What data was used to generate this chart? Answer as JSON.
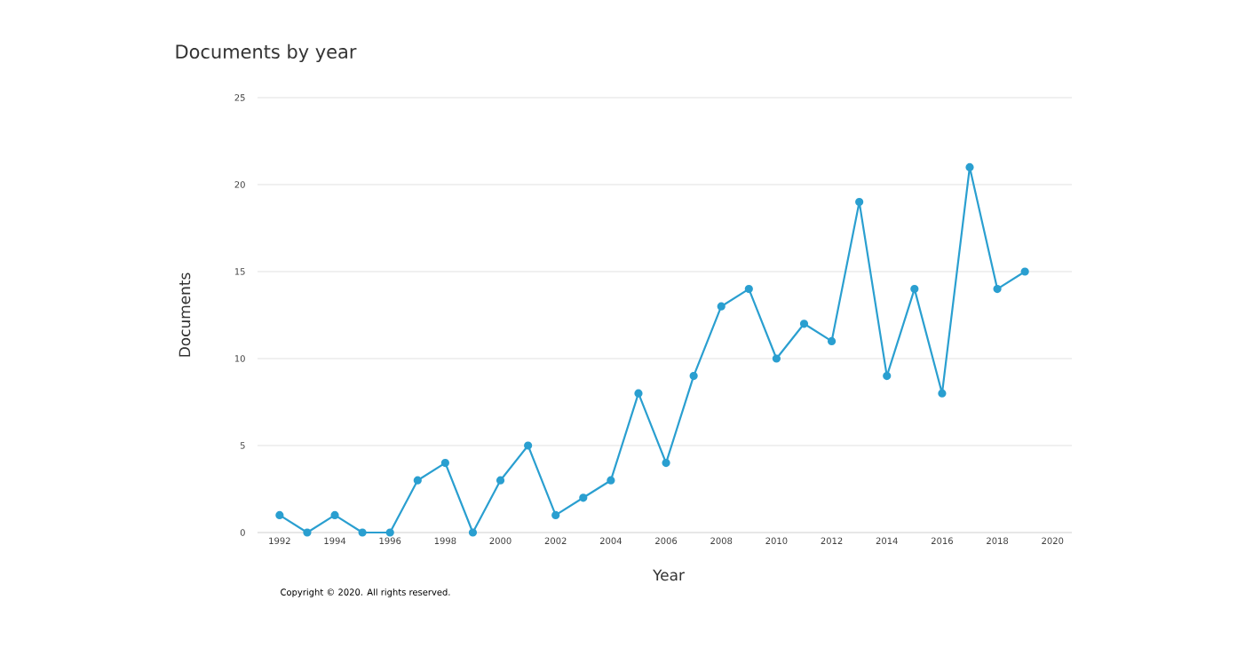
{
  "chart_data": {
    "type": "line",
    "title": "Documents by year",
    "xlabel": "Year",
    "ylabel": "Documents",
    "x": [
      1992,
      1993,
      1994,
      1995,
      1996,
      1997,
      1998,
      1999,
      2000,
      2001,
      2002,
      2003,
      2004,
      2005,
      2006,
      2007,
      2008,
      2009,
      2010,
      2011,
      2012,
      2013,
      2014,
      2015,
      2016,
      2017,
      2018,
      2019
    ],
    "values": [
      1,
      0,
      1,
      0,
      0,
      3,
      4,
      0,
      3,
      5,
      1,
      2,
      3,
      8,
      4,
      9,
      13,
      14,
      10,
      12,
      11,
      19,
      9,
      14,
      8,
      21,
      14,
      15
    ],
    "color": "#2a9fd0",
    "marker": "circle",
    "line_style": "solid",
    "grid": "y",
    "xlim": [
      1991.2,
      2020.7
    ],
    "ylim": [
      0,
      25
    ],
    "xticks": [
      1992,
      1994,
      1996,
      1998,
      2000,
      2002,
      2004,
      2006,
      2008,
      2010,
      2012,
      2014,
      2016,
      2018,
      2020
    ],
    "yticks": [
      0,
      5,
      10,
      15,
      20,
      25
    ],
    "annotations": [
      "Copyright © 2020. All rights reserved."
    ]
  }
}
